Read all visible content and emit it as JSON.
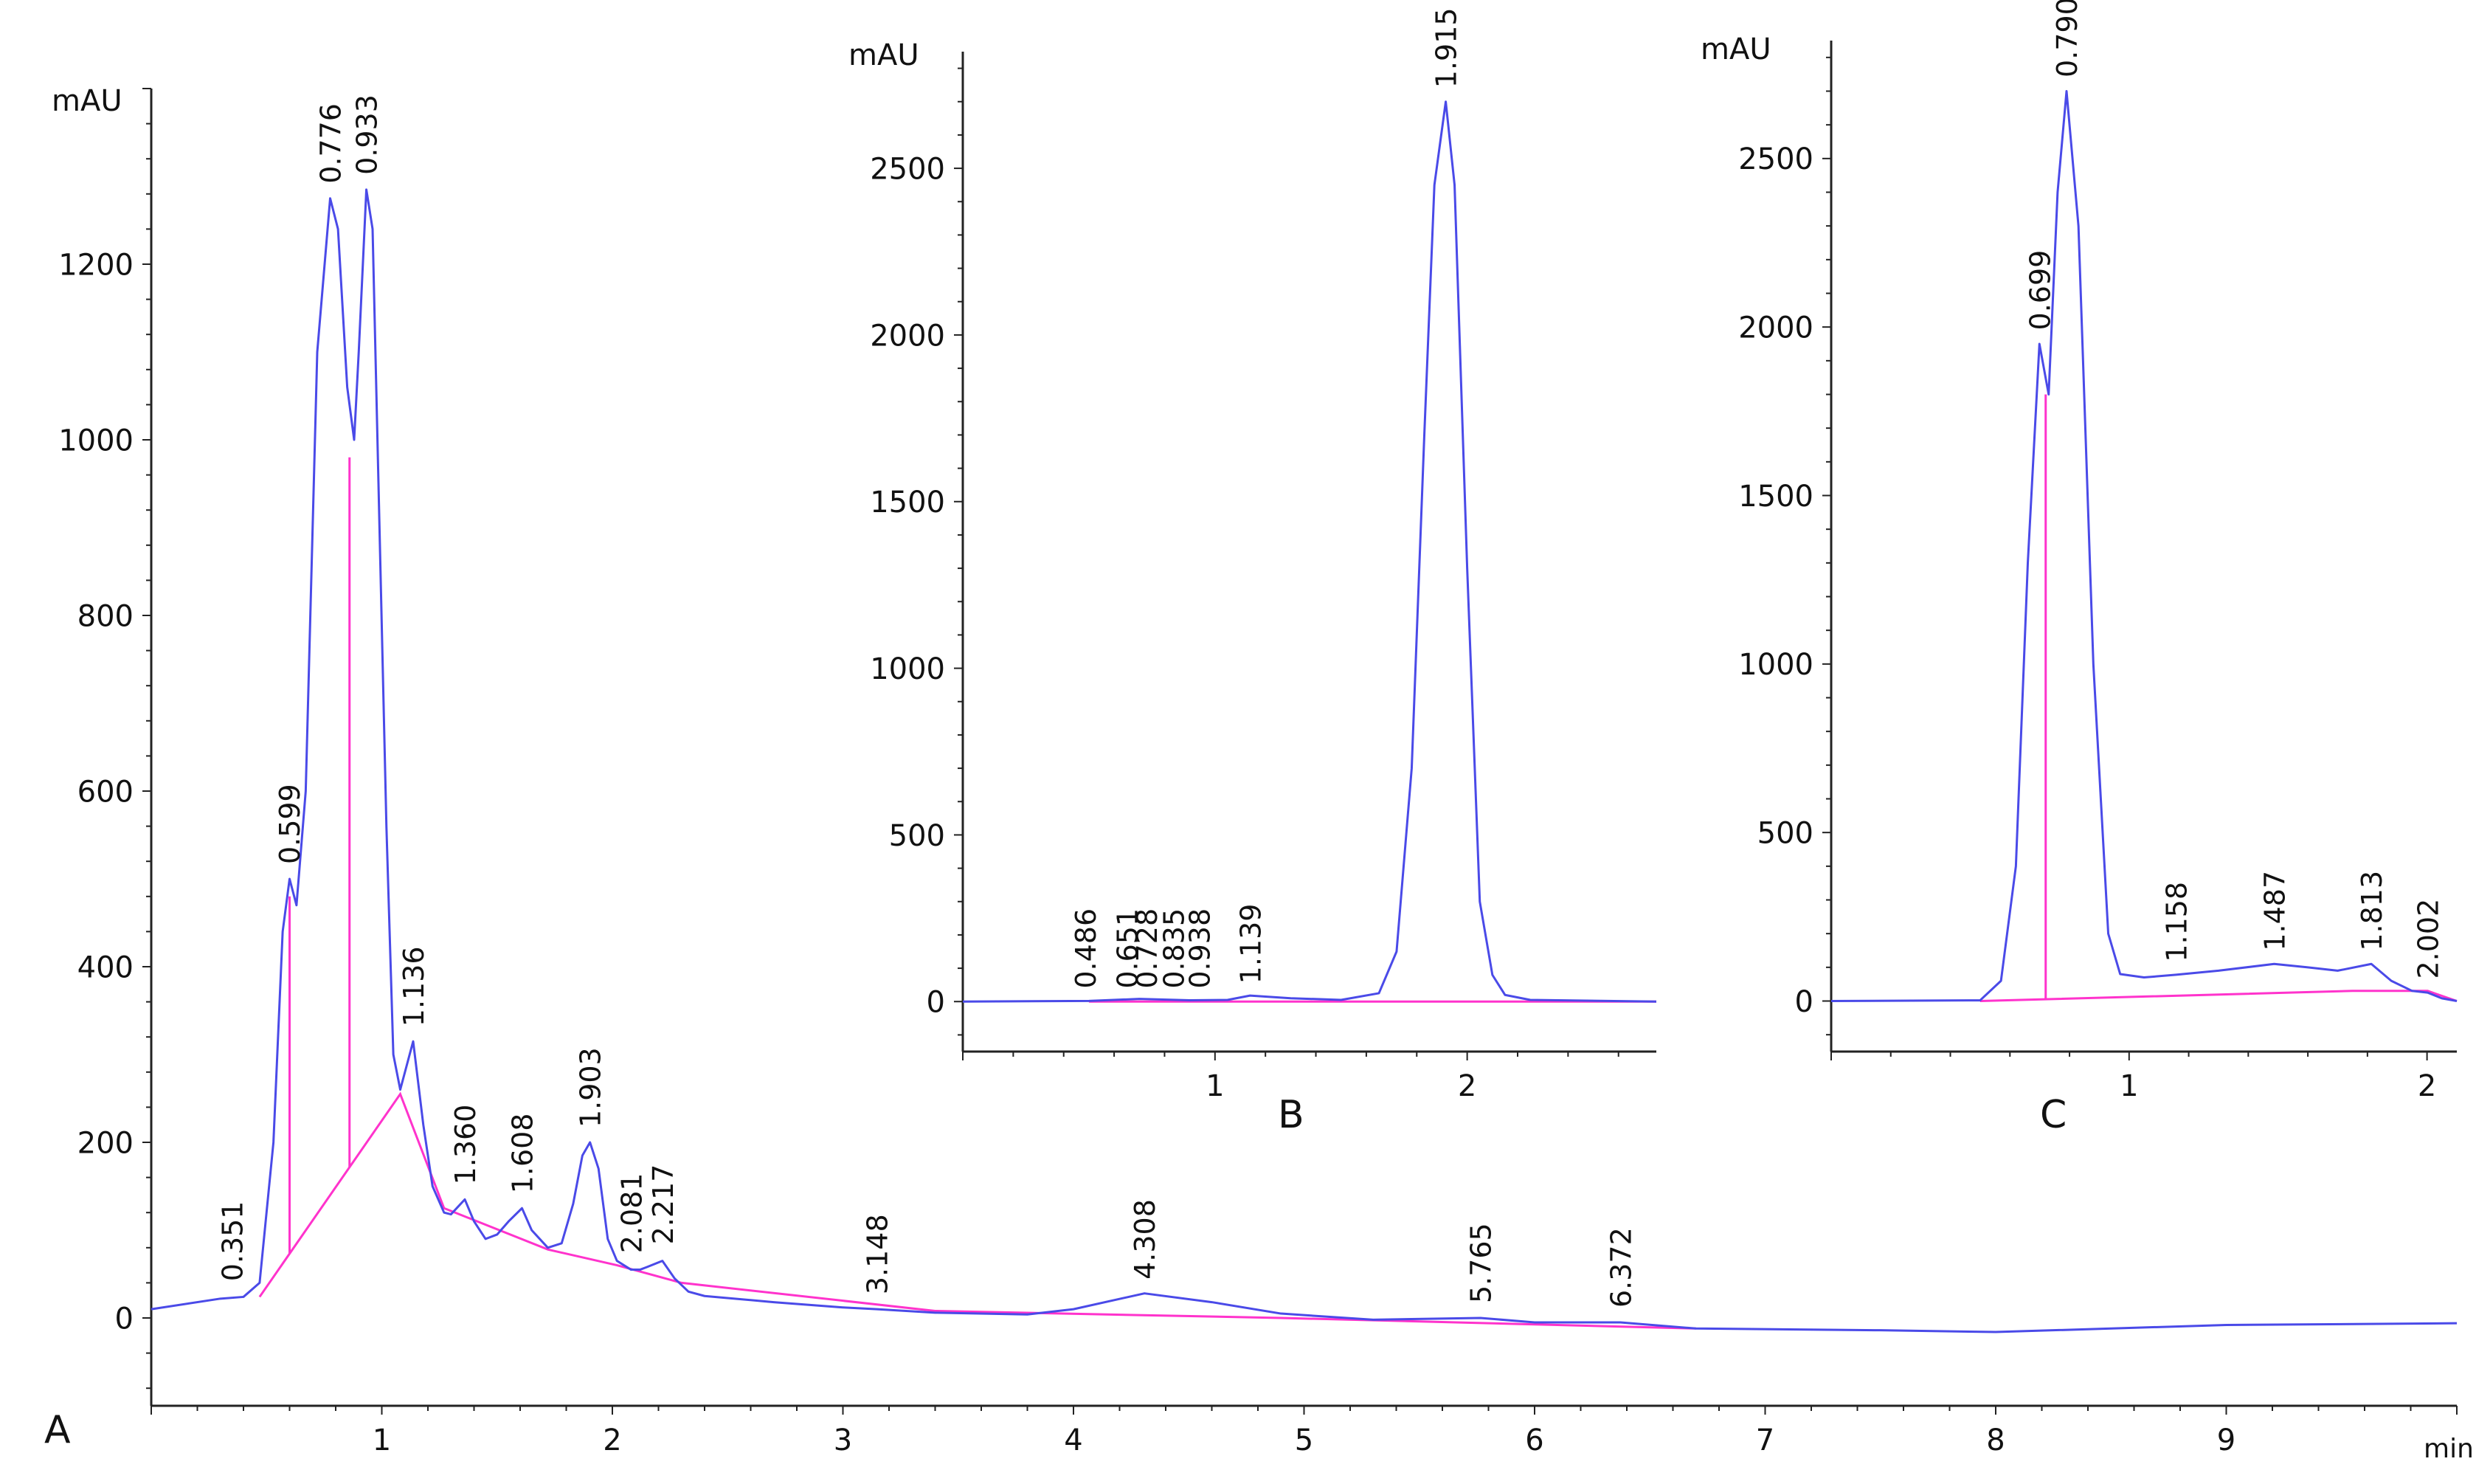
{
  "colors": {
    "trace": "#4a4ae8",
    "baseline": "#ff33cc",
    "axis": "#222222",
    "text": "#111111"
  },
  "chart_data": [
    {
      "panel": "A",
      "type": "line",
      "panel_label": "A",
      "ylabel": "mAU",
      "xlabel": "min",
      "xlim": [
        0,
        10
      ],
      "ylim": [
        -100,
        1400
      ],
      "xticks": [
        1,
        2,
        3,
        4,
        5,
        6,
        7,
        8,
        9
      ],
      "yticks": [
        0,
        200,
        400,
        600,
        800,
        1000,
        1200
      ],
      "trace": [
        [
          0,
          10
        ],
        [
          0.3,
          22
        ],
        [
          0.4,
          24
        ],
        [
          0.47,
          40
        ],
        [
          0.53,
          200
        ],
        [
          0.57,
          440
        ],
        [
          0.6,
          500
        ],
        [
          0.63,
          470
        ],
        [
          0.67,
          600
        ],
        [
          0.72,
          1100
        ],
        [
          0.776,
          1275
        ],
        [
          0.81,
          1240
        ],
        [
          0.85,
          1060
        ],
        [
          0.88,
          1000
        ],
        [
          0.9,
          1100
        ],
        [
          0.933,
          1285
        ],
        [
          0.96,
          1240
        ],
        [
          0.99,
          900
        ],
        [
          1.02,
          560
        ],
        [
          1.05,
          300
        ],
        [
          1.08,
          260
        ],
        [
          1.136,
          315
        ],
        [
          1.18,
          220
        ],
        [
          1.22,
          150
        ],
        [
          1.27,
          120
        ],
        [
          1.3,
          118
        ],
        [
          1.36,
          135
        ],
        [
          1.4,
          110
        ],
        [
          1.45,
          90
        ],
        [
          1.5,
          95
        ],
        [
          1.55,
          110
        ],
        [
          1.608,
          125
        ],
        [
          1.65,
          100
        ],
        [
          1.72,
          80
        ],
        [
          1.78,
          85
        ],
        [
          1.83,
          130
        ],
        [
          1.87,
          185
        ],
        [
          1.903,
          200
        ],
        [
          1.94,
          170
        ],
        [
          1.98,
          90
        ],
        [
          2.02,
          65
        ],
        [
          2.081,
          55
        ],
        [
          2.12,
          55
        ],
        [
          2.15,
          58
        ],
        [
          2.217,
          65
        ],
        [
          2.27,
          45
        ],
        [
          2.33,
          30
        ],
        [
          2.4,
          25
        ],
        [
          2.7,
          18
        ],
        [
          3.0,
          12
        ],
        [
          3.148,
          10
        ],
        [
          3.4,
          6
        ],
        [
          3.8,
          4
        ],
        [
          4.0,
          10
        ],
        [
          4.308,
          28
        ],
        [
          4.6,
          18
        ],
        [
          4.9,
          5
        ],
        [
          5.3,
          -2
        ],
        [
          5.765,
          0
        ],
        [
          6.0,
          -5
        ],
        [
          6.372,
          -5
        ],
        [
          6.7,
          -12
        ],
        [
          7.5,
          -14
        ],
        [
          8.0,
          -16
        ],
        [
          9.0,
          -8
        ],
        [
          10,
          -6
        ]
      ],
      "baseline": [
        [
          0.47,
          24
        ],
        [
          1.08,
          255
        ],
        [
          1.27,
          125
        ],
        [
          1.72,
          78
        ],
        [
          2.02,
          60
        ],
        [
          2.3,
          40
        ],
        [
          3.4,
          8
        ],
        [
          4.9,
          0
        ],
        [
          6.7,
          -12
        ]
      ],
      "drop_lines": [
        [
          0.6,
          480
        ],
        [
          0.86,
          980
        ]
      ],
      "peak_labels": [
        "0.351",
        "0.599",
        "0.776",
        "0.933",
        "1.136",
        "1.360",
        "1.608",
        "1.903",
        "2.081",
        "2.217",
        "3.148",
        "4.308",
        "5.765",
        "6.372"
      ],
      "peak_label_points": [
        [
          0.351,
          30
        ],
        [
          0.599,
          505
        ],
        [
          0.776,
          1280
        ],
        [
          0.933,
          1290
        ],
        [
          1.136,
          320
        ],
        [
          1.36,
          140
        ],
        [
          1.608,
          130
        ],
        [
          1.903,
          205
        ],
        [
          2.081,
          62
        ],
        [
          2.217,
          72
        ],
        [
          3.148,
          15
        ],
        [
          4.308,
          32
        ],
        [
          5.765,
          5
        ],
        [
          6.372,
          0
        ]
      ]
    },
    {
      "panel": "B",
      "type": "line",
      "panel_label": "B",
      "ylabel": "mAU",
      "xlabel": "",
      "xlim": [
        0,
        2.75
      ],
      "ylim": [
        -150,
        2850
      ],
      "xticks": [
        1,
        2
      ],
      "yticks": [
        0,
        500,
        1000,
        1500,
        2000,
        2500
      ],
      "trace": [
        [
          0,
          0
        ],
        [
          0.5,
          2
        ],
        [
          0.7,
          8
        ],
        [
          0.9,
          4
        ],
        [
          1.05,
          5
        ],
        [
          1.139,
          18
        ],
        [
          1.3,
          10
        ],
        [
          1.5,
          5
        ],
        [
          1.65,
          25
        ],
        [
          1.72,
          150
        ],
        [
          1.78,
          700
        ],
        [
          1.83,
          1700
        ],
        [
          1.87,
          2450
        ],
        [
          1.915,
          2700
        ],
        [
          1.95,
          2450
        ],
        [
          2.0,
          1300
        ],
        [
          2.05,
          300
        ],
        [
          2.1,
          80
        ],
        [
          2.15,
          20
        ],
        [
          2.25,
          5
        ],
        [
          2.75,
          0
        ]
      ],
      "baseline": [
        [
          0.5,
          0
        ],
        [
          2.75,
          0
        ]
      ],
      "drop_lines": [],
      "peak_labels": [
        "0.486",
        "0.651",
        "0.728",
        "0.835",
        "0.938",
        "1.139",
        "1.915"
      ],
      "peak_label_points": [
        [
          0.486,
          8
        ],
        [
          0.651,
          8
        ],
        [
          0.728,
          8
        ],
        [
          0.835,
          8
        ],
        [
          0.938,
          8
        ],
        [
          1.139,
          22
        ],
        [
          1.915,
          2710
        ]
      ]
    },
    {
      "panel": "C",
      "type": "line",
      "panel_label": "C",
      "ylabel": "mAU",
      "xlabel": "",
      "xlim": [
        0,
        2.1
      ],
      "ylim": [
        -150,
        2850
      ],
      "xticks": [
        1,
        2
      ],
      "yticks": [
        0,
        500,
        1000,
        1500,
        2000,
        2500
      ],
      "trace": [
        [
          0,
          0
        ],
        [
          0.5,
          2
        ],
        [
          0.57,
          60
        ],
        [
          0.62,
          400
        ],
        [
          0.66,
          1300
        ],
        [
          0.699,
          1950
        ],
        [
          0.73,
          1800
        ],
        [
          0.76,
          2400
        ],
        [
          0.79,
          2700
        ],
        [
          0.83,
          2300
        ],
        [
          0.88,
          1000
        ],
        [
          0.93,
          200
        ],
        [
          0.97,
          80
        ],
        [
          1.05,
          70
        ],
        [
          1.158,
          78
        ],
        [
          1.3,
          90
        ],
        [
          1.487,
          110
        ],
        [
          1.6,
          100
        ],
        [
          1.7,
          90
        ],
        [
          1.813,
          110
        ],
        [
          1.88,
          60
        ],
        [
          1.95,
          30
        ],
        [
          2.002,
          25
        ],
        [
          2.05,
          8
        ],
        [
          2.1,
          0
        ]
      ],
      "baseline": [
        [
          0.5,
          0
        ],
        [
          1.75,
          30
        ],
        [
          2.002,
          30
        ],
        [
          2.1,
          0
        ]
      ],
      "drop_lines": [
        [
          0.72,
          1800
        ]
      ],
      "peak_labels": [
        "0.699",
        "0.790",
        "1.158",
        "1.487",
        "1.813",
        "2.002"
      ],
      "peak_label_points": [
        [
          0.699,
          1960
        ],
        [
          0.79,
          2710
        ],
        [
          1.158,
          85
        ],
        [
          1.487,
          118
        ],
        [
          1.813,
          118
        ],
        [
          2.002,
          35
        ]
      ]
    }
  ]
}
